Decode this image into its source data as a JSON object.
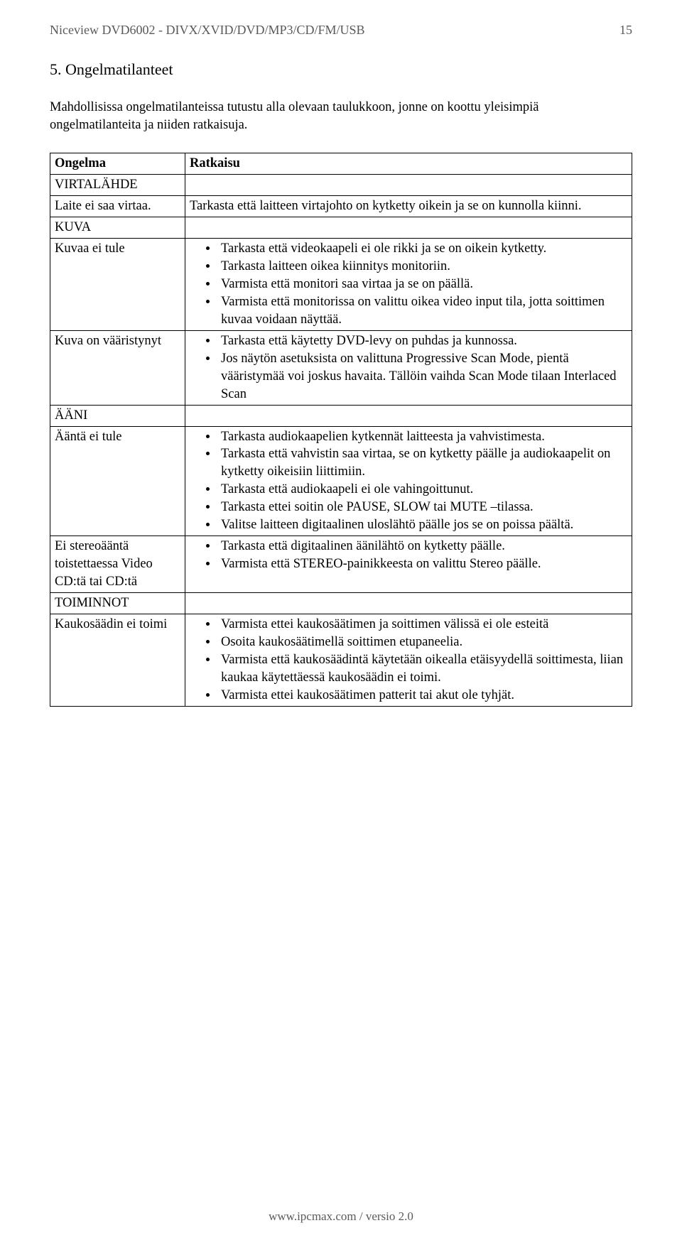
{
  "header": {
    "title": "Niceview DVD6002 - DIVX/XVID/DVD/MP3/CD/FM/USB",
    "page_number": "15"
  },
  "section": {
    "number": "5.",
    "title": "Ongelmatilanteet"
  },
  "intro": "Mahdollisissa ongelmatilanteissa tutustu alla olevaan taulukkoon, jonne on koottu yleisimpiä ongelmatilanteita ja niiden ratkaisuja.",
  "table": {
    "head": {
      "problem": "Ongelma",
      "solution": "Ratkaisu"
    },
    "groups": [
      {
        "label": "VIRTALÄHDE",
        "rows": [
          {
            "problem": "Laite ei saa virtaa.",
            "solution_text": "Tarkasta että laitteen virtajohto on kytketty oikein ja se on kunnolla kiinni."
          }
        ]
      },
      {
        "label": "KUVA",
        "rows": [
          {
            "problem": "Kuvaa ei tule",
            "solution_list": [
              "Tarkasta että videokaapeli ei ole rikki ja se on oikein kytketty.",
              "Tarkasta  laitteen oikea kiinnitys monitoriin.",
              "Varmista että monitori saa virtaa ja se on päällä.",
              "Varmista että monitorissa on valittu oikea video input tila, jotta soittimen kuvaa voidaan näyttää."
            ]
          },
          {
            "problem": "Kuva on vääristynyt",
            "solution_list": [
              "Tarkasta että käytetty DVD-levy on puhdas ja kunnossa.",
              "Jos näytön asetuksista on valittuna Progressive Scan Mode, pientä vääristymää voi joskus havaita. Tällöin vaihda Scan Mode tilaan Interlaced Scan"
            ]
          }
        ]
      },
      {
        "label": "ÄÄNI",
        "rows": [
          {
            "problem": "Ääntä ei tule",
            "solution_list": [
              "Tarkasta audiokaapelien kytkennät laitteesta ja vahvistimesta.",
              "Tarkasta että vahvistin saa virtaa, se on kytketty päälle ja audiokaapelit on kytketty oikeisiin liittimiin.",
              "Tarkasta että audiokaapeli ei ole vahingoittunut.",
              "Tarkasta ettei soitin ole PAUSE, SLOW tai MUTE –tilassa.",
              "Valitse laitteen digitaalinen uloslähtö päälle jos se on poissa päältä."
            ]
          },
          {
            "problem": "Ei stereoääntä toistettaessa Video CD:tä tai CD:tä",
            "solution_list": [
              "Tarkasta että digitaalinen äänilähtö on kytketty päälle.",
              "Varmista että STEREO-painikkeesta on valittu Stereo päälle."
            ]
          }
        ]
      },
      {
        "label": "TOIMINNOT",
        "rows": [
          {
            "problem": "Kaukosäädin ei toimi",
            "solution_list": [
              "Varmista ettei kaukosäätimen ja soittimen välissä ei ole esteitä",
              "Osoita kaukosäätimellä soittimen etupaneelia.",
              "Varmista että kaukosäädintä käytetään oikealla etäisyydellä soittimesta, liian kaukaa käytettäessä kaukosäädin ei toimi.",
              "Varmista ettei kaukosäätimen patterit tai akut ole tyhjät."
            ]
          }
        ]
      }
    ]
  },
  "footer": "www.ipcmax.com / versio 2.0"
}
